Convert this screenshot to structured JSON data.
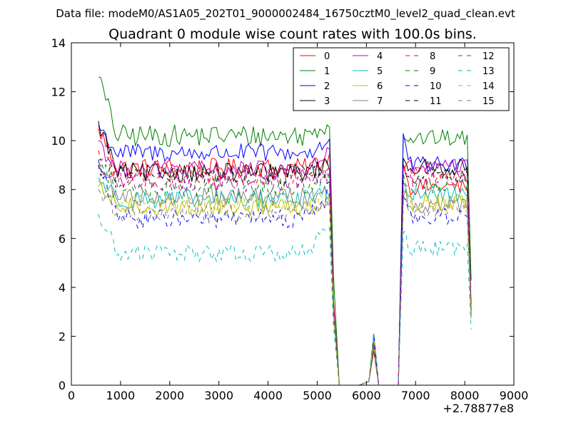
{
  "chart_data": {
    "type": "line",
    "suptitle": "Data file: modeM0/AS1A05_202T01_9000002484_16750cztM0_level2_quad_clean.evt",
    "title": "Quadrant 0 module wise count rates with 100.0s bins.",
    "xlabel": "",
    "ylabel": "",
    "x_offset_label": "+2.78877e8",
    "xlim": [
      0,
      9000
    ],
    "ylim": [
      0,
      14
    ],
    "x_ticks": [
      0,
      1000,
      2000,
      3000,
      4000,
      5000,
      6000,
      7000,
      8000,
      9000
    ],
    "y_ticks": [
      0,
      2,
      4,
      6,
      8,
      10,
      12,
      14
    ],
    "grid": false,
    "legend": {
      "placement": "top-right",
      "columns": 4
    },
    "segments": {
      "first": [
        550,
        5250
      ],
      "gap_spike": [
        5450,
        5850,
        6050,
        6150,
        6250,
        6650
      ],
      "second": [
        6750,
        8050
      ]
    },
    "series": [
      {
        "name": "0",
        "color": "#ff0000",
        "dash": "solid",
        "level": 8.9,
        "start": 10.5,
        "end": 9.3,
        "end_drop": 3.5,
        "level2": 8.1,
        "start2": 9.0
      },
      {
        "name": "1",
        "color": "#008000",
        "dash": "solid",
        "level": 10.2,
        "start": 12.6,
        "end": 10.8,
        "end_drop": 4.5,
        "level2": 10.1,
        "start2": 10.3
      },
      {
        "name": "2",
        "color": "#0000ff",
        "dash": "solid",
        "level": 9.5,
        "start": 10.6,
        "end": 9.9,
        "end_drop": 3.0,
        "level2": 9.0,
        "start2": 10.0
      },
      {
        "name": "3",
        "color": "#000000",
        "dash": "solid",
        "level": 8.7,
        "start": 10.8,
        "end": 9.0,
        "end_drop": 3.2,
        "level2": 8.9,
        "start2": 9.2
      },
      {
        "name": "4",
        "color": "#bf00bf",
        "dash": "solid",
        "level": 8.8,
        "start": 10.0,
        "end": 9.5,
        "end_drop": 3.3,
        "level2": 8.9,
        "start2": 9.0
      },
      {
        "name": "5",
        "color": "#00bfbf",
        "dash": "solid",
        "level": 7.6,
        "start": 8.5,
        "end": 8.0,
        "end_drop": 3.0,
        "level2": 7.8,
        "start2": 8.0
      },
      {
        "name": "6",
        "color": "#bfbf00",
        "dash": "solid",
        "level": 7.3,
        "start": 8.1,
        "end": 7.6,
        "end_drop": 3.0,
        "level2": 7.5,
        "start2": 7.8
      },
      {
        "name": "7",
        "color": "#808080",
        "dash": "solid",
        "level": 7.7,
        "start": 9.0,
        "end": 8.0,
        "end_drop": 3.1,
        "level2": 7.4,
        "start2": 7.8
      },
      {
        "name": "8",
        "color": "#ff0000",
        "dash": "dashed",
        "level": 8.5,
        "start": 9.6,
        "end": 8.8,
        "end_drop": 3.2,
        "level2": 8.6,
        "start2": 8.8
      },
      {
        "name": "9",
        "color": "#008000",
        "dash": "dashed",
        "level": 8.1,
        "start": 9.2,
        "end": 8.6,
        "end_drop": 3.0,
        "level2": 8.2,
        "start2": 8.5
      },
      {
        "name": "10",
        "color": "#0000ff",
        "dash": "dashed",
        "level": 6.8,
        "start": 9.2,
        "end": 7.8,
        "end_drop": 3.2,
        "level2": 6.9,
        "start2": 7.8
      },
      {
        "name": "11",
        "color": "#000000",
        "dash": "dashed",
        "level": 8.6,
        "start": 9.0,
        "end": 8.6,
        "end_drop": 3.1,
        "level2": 8.6,
        "start2": 8.7
      },
      {
        "name": "12",
        "color": "#bf00bf",
        "dash": "dashed",
        "level": 8.3,
        "start": 9.0,
        "end": 8.6,
        "end_drop": 3.1,
        "level2": 8.4,
        "start2": 8.7
      },
      {
        "name": "13",
        "color": "#00bfbf",
        "dash": "dashed",
        "level": 5.4,
        "start": 7.0,
        "end": 6.7,
        "end_drop": 2.4,
        "level2": 5.6,
        "start2": 6.3
      },
      {
        "name": "14",
        "color": "#bfbf00",
        "dash": "dashed",
        "level": 7.4,
        "start": 8.3,
        "end": 7.6,
        "end_drop": 2.9,
        "level2": 7.4,
        "start2": 7.8
      },
      {
        "name": "15",
        "color": "#808080",
        "dash": "dashed",
        "level": 7.0,
        "start": 8.0,
        "end": 7.5,
        "end_drop": 2.8,
        "level2": 7.2,
        "start2": 7.5
      }
    ]
  }
}
